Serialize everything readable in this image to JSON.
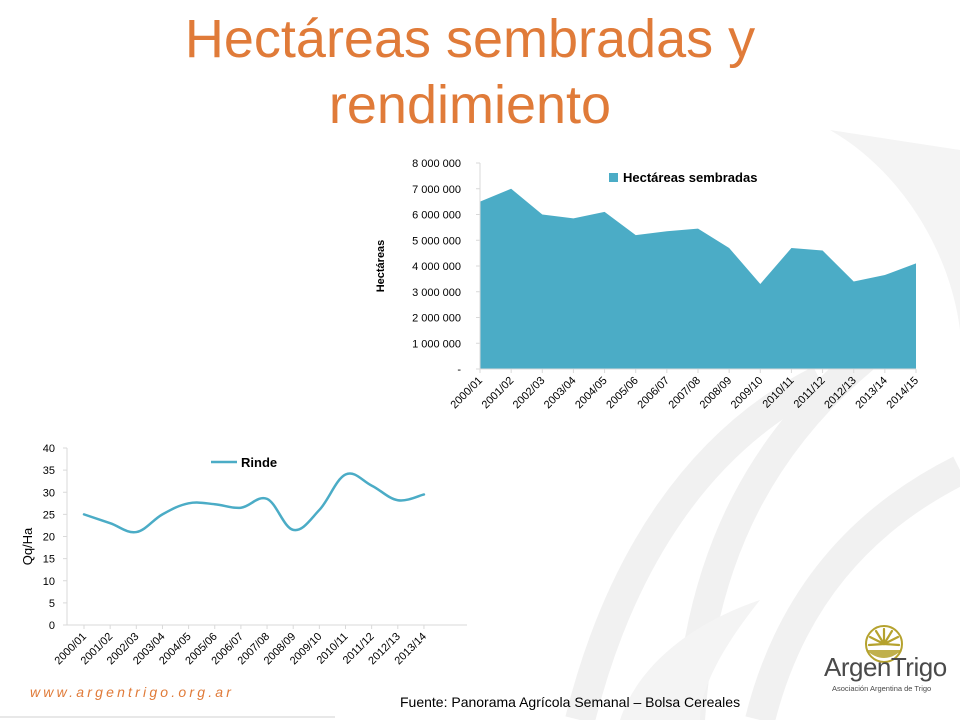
{
  "slide": {
    "title_line1": "Hectáreas sembradas y",
    "title_line2": "rendimiento",
    "website": "www.argentrigo.org.ar",
    "source": "Fuente: Panorama Agrícola Semanal – Bolsa Cereales",
    "logo_name": "ArgenTrigo",
    "logo_subtitle": "Asociación Argentina de Trigo",
    "colors": {
      "title": "#E07B39",
      "area": "#4BACC6",
      "line": "#4BACC6",
      "logo_gold": "#B5A22E"
    }
  },
  "chart_data": [
    {
      "type": "area",
      "title": "",
      "ylabel": "Hectáreas",
      "xlabel": "",
      "legend": "Hectáreas sembradas",
      "legend_position": "top-right",
      "grid": false,
      "ylim": [
        0,
        8000000
      ],
      "yticks": [
        0,
        1000000,
        2000000,
        3000000,
        4000000,
        5000000,
        6000000,
        7000000,
        8000000
      ],
      "ytick_labels": [
        "-",
        "1 000 000",
        "2 000 000",
        "3 000 000",
        "4 000 000",
        "5 000 000",
        "6 000 000",
        "7 000 000",
        "8 000 000"
      ],
      "categories": [
        "2000/01",
        "2001/02",
        "2002/03",
        "2003/04",
        "2004/05",
        "2005/06",
        "2006/07",
        "2007/08",
        "2008/09",
        "2009/10",
        "2010/11",
        "2011/12",
        "2012/13",
        "2013/14",
        "2014/15"
      ],
      "series": [
        {
          "name": "Hectáreas sembradas",
          "values": [
            6500000,
            7000000,
            6000000,
            5850000,
            6100000,
            5200000,
            5350000,
            5450000,
            4700000,
            3300000,
            4700000,
            4600000,
            3400000,
            3650000,
            4100000
          ]
        }
      ]
    },
    {
      "type": "line",
      "title": "",
      "ylabel": "Qq/Ha",
      "xlabel": "",
      "legend": "Rinde",
      "legend_position": "top",
      "grid": false,
      "ylim": [
        0,
        40
      ],
      "yticks": [
        0,
        5,
        10,
        15,
        20,
        25,
        30,
        35,
        40
      ],
      "categories": [
        "2000/01",
        "2001/02",
        "2002/03",
        "2003/04",
        "2004/05",
        "2005/06",
        "2006/07",
        "2007/08",
        "2008/09",
        "2009/10",
        "2010/11",
        "2011/12",
        "2012/13",
        "2013/14"
      ],
      "series": [
        {
          "name": "Rinde",
          "values": [
            25,
            23,
            21,
            25,
            27.5,
            27.3,
            26.5,
            28.5,
            21.5,
            26,
            34,
            31.5,
            28.2,
            29.5
          ]
        }
      ]
    }
  ]
}
